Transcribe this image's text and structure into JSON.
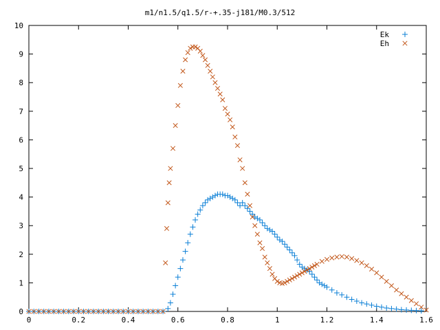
{
  "chart_data": {
    "type": "scatter",
    "title": "m1/n1.5/q1.5/r-+.35-j181/M0.3/512",
    "xlabel": "",
    "ylabel": "",
    "xlim": [
      0,
      1.6
    ],
    "ylim": [
      0,
      10
    ],
    "xticks": [
      "0",
      "0.2",
      "0.4",
      "0.6",
      "0.8",
      "1",
      "1.2",
      "1.4",
      "1.6"
    ],
    "yticks": [
      "0",
      "1",
      "2",
      "3",
      "4",
      "5",
      "6",
      "7",
      "8",
      "9",
      "10"
    ],
    "legend_position": "top-right",
    "grid": false,
    "series": [
      {
        "name": "Ek",
        "marker": "+",
        "color": "#0a7fd6",
        "points": [
          [
            0.0,
            0
          ],
          [
            0.02,
            0
          ],
          [
            0.04,
            0
          ],
          [
            0.06,
            0
          ],
          [
            0.08,
            0
          ],
          [
            0.1,
            0
          ],
          [
            0.12,
            0
          ],
          [
            0.14,
            0
          ],
          [
            0.16,
            0
          ],
          [
            0.18,
            0
          ],
          [
            0.2,
            0
          ],
          [
            0.22,
            0
          ],
          [
            0.24,
            0
          ],
          [
            0.26,
            0
          ],
          [
            0.28,
            0
          ],
          [
            0.3,
            0
          ],
          [
            0.32,
            0
          ],
          [
            0.34,
            0
          ],
          [
            0.36,
            0
          ],
          [
            0.38,
            0
          ],
          [
            0.4,
            0
          ],
          [
            0.42,
            0
          ],
          [
            0.44,
            0
          ],
          [
            0.46,
            0
          ],
          [
            0.48,
            0
          ],
          [
            0.5,
            0
          ],
          [
            0.52,
            0
          ],
          [
            0.54,
            0
          ],
          [
            0.56,
            0.1
          ],
          [
            0.57,
            0.3
          ],
          [
            0.58,
            0.6
          ],
          [
            0.59,
            0.9
          ],
          [
            0.6,
            1.2
          ],
          [
            0.61,
            1.5
          ],
          [
            0.62,
            1.8
          ],
          [
            0.63,
            2.1
          ],
          [
            0.64,
            2.4
          ],
          [
            0.65,
            2.7
          ],
          [
            0.66,
            2.95
          ],
          [
            0.67,
            3.2
          ],
          [
            0.68,
            3.4
          ],
          [
            0.69,
            3.55
          ],
          [
            0.7,
            3.7
          ],
          [
            0.71,
            3.8
          ],
          [
            0.72,
            3.9
          ],
          [
            0.73,
            3.95
          ],
          [
            0.74,
            4.0
          ],
          [
            0.75,
            4.05
          ],
          [
            0.76,
            4.1
          ],
          [
            0.77,
            4.1
          ],
          [
            0.78,
            4.1
          ],
          [
            0.79,
            4.05
          ],
          [
            0.8,
            4.05
          ],
          [
            0.81,
            4.0
          ],
          [
            0.82,
            3.95
          ],
          [
            0.83,
            3.9
          ],
          [
            0.84,
            3.8
          ],
          [
            0.85,
            3.7
          ],
          [
            0.86,
            3.8
          ],
          [
            0.87,
            3.7
          ],
          [
            0.88,
            3.6
          ],
          [
            0.89,
            3.5
          ],
          [
            0.9,
            3.4
          ],
          [
            0.91,
            3.3
          ],
          [
            0.92,
            3.25
          ],
          [
            0.93,
            3.2
          ],
          [
            0.94,
            3.1
          ],
          [
            0.95,
            3.0
          ],
          [
            0.96,
            2.9
          ],
          [
            0.97,
            2.85
          ],
          [
            0.98,
            2.8
          ],
          [
            0.99,
            2.7
          ],
          [
            1.0,
            2.6
          ],
          [
            1.01,
            2.5
          ],
          [
            1.02,
            2.45
          ],
          [
            1.03,
            2.35
          ],
          [
            1.04,
            2.25
          ],
          [
            1.05,
            2.15
          ],
          [
            1.06,
            2.05
          ],
          [
            1.07,
            1.95
          ],
          [
            1.08,
            1.8
          ],
          [
            1.09,
            1.65
          ],
          [
            1.1,
            1.55
          ],
          [
            1.11,
            1.5
          ],
          [
            1.12,
            1.45
          ],
          [
            1.13,
            1.4
          ],
          [
            1.14,
            1.3
          ],
          [
            1.15,
            1.2
          ],
          [
            1.16,
            1.1
          ],
          [
            1.17,
            1.0
          ],
          [
            1.18,
            0.95
          ],
          [
            1.19,
            0.9
          ],
          [
            1.2,
            0.85
          ],
          [
            1.22,
            0.75
          ],
          [
            1.24,
            0.65
          ],
          [
            1.26,
            0.58
          ],
          [
            1.28,
            0.5
          ],
          [
            1.3,
            0.42
          ],
          [
            1.32,
            0.36
          ],
          [
            1.34,
            0.3
          ],
          [
            1.36,
            0.26
          ],
          [
            1.38,
            0.22
          ],
          [
            1.4,
            0.18
          ],
          [
            1.42,
            0.15
          ],
          [
            1.44,
            0.12
          ],
          [
            1.46,
            0.1
          ],
          [
            1.48,
            0.08
          ],
          [
            1.5,
            0.06
          ],
          [
            1.52,
            0.05
          ],
          [
            1.54,
            0.04
          ],
          [
            1.56,
            0.03
          ],
          [
            1.58,
            0.02
          ]
        ]
      },
      {
        "name": "Eh",
        "marker": "x",
        "color": "#c2571a",
        "points": [
          [
            0.0,
            0
          ],
          [
            0.02,
            0
          ],
          [
            0.04,
            0
          ],
          [
            0.06,
            0
          ],
          [
            0.08,
            0
          ],
          [
            0.1,
            0
          ],
          [
            0.12,
            0
          ],
          [
            0.14,
            0
          ],
          [
            0.16,
            0
          ],
          [
            0.18,
            0
          ],
          [
            0.2,
            0
          ],
          [
            0.22,
            0
          ],
          [
            0.24,
            0
          ],
          [
            0.26,
            0
          ],
          [
            0.28,
            0
          ],
          [
            0.3,
            0
          ],
          [
            0.32,
            0
          ],
          [
            0.34,
            0
          ],
          [
            0.36,
            0
          ],
          [
            0.38,
            0
          ],
          [
            0.4,
            0
          ],
          [
            0.42,
            0
          ],
          [
            0.44,
            0
          ],
          [
            0.46,
            0
          ],
          [
            0.48,
            0
          ],
          [
            0.5,
            0
          ],
          [
            0.52,
            0
          ],
          [
            0.54,
            0
          ],
          [
            0.55,
            1.7
          ],
          [
            0.555,
            2.9
          ],
          [
            0.56,
            3.8
          ],
          [
            0.565,
            4.5
          ],
          [
            0.57,
            5.0
          ],
          [
            0.58,
            5.7
          ],
          [
            0.59,
            6.5
          ],
          [
            0.6,
            7.2
          ],
          [
            0.61,
            7.9
          ],
          [
            0.62,
            8.4
          ],
          [
            0.63,
            8.8
          ],
          [
            0.64,
            9.05
          ],
          [
            0.65,
            9.2
          ],
          [
            0.66,
            9.25
          ],
          [
            0.67,
            9.25
          ],
          [
            0.68,
            9.2
          ],
          [
            0.69,
            9.1
          ],
          [
            0.7,
            8.95
          ],
          [
            0.71,
            8.8
          ],
          [
            0.72,
            8.6
          ],
          [
            0.73,
            8.4
          ],
          [
            0.74,
            8.2
          ],
          [
            0.75,
            8.0
          ],
          [
            0.76,
            7.8
          ],
          [
            0.77,
            7.6
          ],
          [
            0.78,
            7.4
          ],
          [
            0.79,
            7.1
          ],
          [
            0.8,
            6.9
          ],
          [
            0.81,
            6.7
          ],
          [
            0.82,
            6.45
          ],
          [
            0.83,
            6.1
          ],
          [
            0.84,
            5.8
          ],
          [
            0.85,
            5.3
          ],
          [
            0.86,
            5.0
          ],
          [
            0.87,
            4.5
          ],
          [
            0.88,
            4.1
          ],
          [
            0.89,
            3.7
          ],
          [
            0.9,
            3.3
          ],
          [
            0.91,
            3.0
          ],
          [
            0.92,
            2.7
          ],
          [
            0.93,
            2.4
          ],
          [
            0.94,
            2.2
          ],
          [
            0.95,
            1.9
          ],
          [
            0.96,
            1.7
          ],
          [
            0.97,
            1.5
          ],
          [
            0.98,
            1.3
          ],
          [
            0.99,
            1.15
          ],
          [
            1.0,
            1.05
          ],
          [
            1.01,
            1.0
          ],
          [
            1.02,
            0.98
          ],
          [
            1.03,
            1.0
          ],
          [
            1.04,
            1.05
          ],
          [
            1.05,
            1.1
          ],
          [
            1.06,
            1.15
          ],
          [
            1.07,
            1.2
          ],
          [
            1.08,
            1.25
          ],
          [
            1.09,
            1.3
          ],
          [
            1.1,
            1.35
          ],
          [
            1.11,
            1.4
          ],
          [
            1.12,
            1.45
          ],
          [
            1.13,
            1.5
          ],
          [
            1.14,
            1.55
          ],
          [
            1.15,
            1.6
          ],
          [
            1.16,
            1.65
          ],
          [
            1.18,
            1.75
          ],
          [
            1.2,
            1.82
          ],
          [
            1.22,
            1.87
          ],
          [
            1.24,
            1.9
          ],
          [
            1.26,
            1.92
          ],
          [
            1.28,
            1.9
          ],
          [
            1.3,
            1.85
          ],
          [
            1.32,
            1.78
          ],
          [
            1.34,
            1.7
          ],
          [
            1.36,
            1.6
          ],
          [
            1.38,
            1.48
          ],
          [
            1.4,
            1.35
          ],
          [
            1.42,
            1.2
          ],
          [
            1.44,
            1.05
          ],
          [
            1.46,
            0.9
          ],
          [
            1.48,
            0.75
          ],
          [
            1.5,
            0.62
          ],
          [
            1.52,
            0.5
          ],
          [
            1.54,
            0.38
          ],
          [
            1.56,
            0.27
          ],
          [
            1.58,
            0.15
          ],
          [
            1.6,
            0.05
          ]
        ]
      }
    ]
  }
}
